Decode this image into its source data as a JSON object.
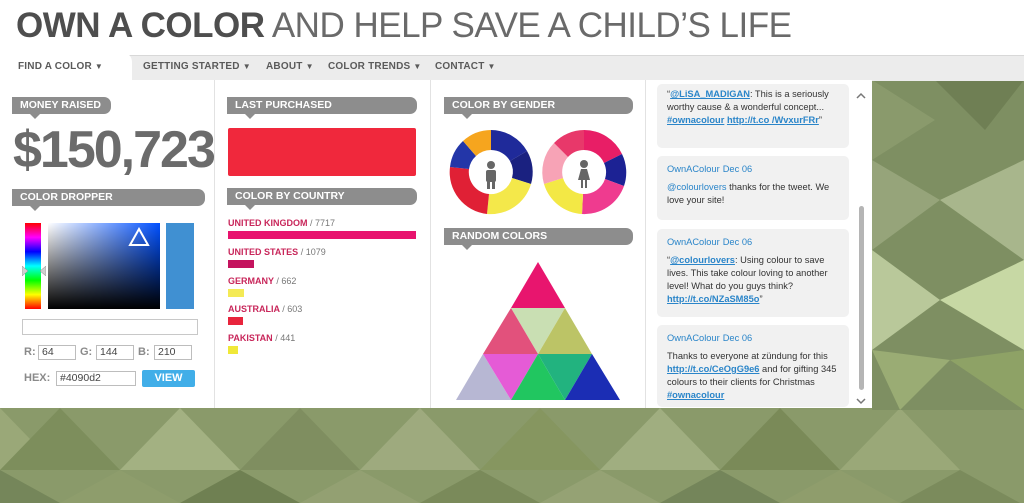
{
  "headline": {
    "bold": "OWN A COLOR",
    "rest": " AND HELP SAVE A CHILD’S LIFE"
  },
  "nav": [
    {
      "label": "FIND A COLOR"
    },
    {
      "label": "GETTING STARTED"
    },
    {
      "label": "ABOUT"
    },
    {
      "label": "COLOR TRENDS"
    },
    {
      "label": "CONTACT"
    }
  ],
  "money": {
    "label": "MONEY RAISED",
    "value": "$150,723"
  },
  "dropper": {
    "label": "COLOR DROPPER",
    "r_label": "R:",
    "r": "64",
    "g_label": "G:",
    "g": "144",
    "b_label": "B:",
    "b": "210",
    "hex_label": "HEX:",
    "hex": "#4090d2",
    "view": "VIEW"
  },
  "last_purchased": {
    "label": "LAST PURCHASED",
    "color": "#f0283c"
  },
  "by_country": {
    "label": "COLOR BY COUNTRY",
    "rows": [
      {
        "name": "UNITED KINGDOM",
        "count": "/ 7717",
        "color": "#e8136e",
        "value": 7717
      },
      {
        "name": "UNITED STATES",
        "count": "/ 1079",
        "color": "#c4135e",
        "value": 1079
      },
      {
        "name": "GERMANY",
        "count": "/ 662",
        "color": "#f4ea55",
        "value": 662
      },
      {
        "name": "AUSTRALIA",
        "count": "/ 603",
        "color": "#e8243c",
        "value": 603
      },
      {
        "name": "PAKISTAN",
        "count": "/ 441",
        "color": "#f0e838",
        "value": 441
      }
    ]
  },
  "by_gender": {
    "label": "COLOR BY GENDER",
    "male_icon": "male-icon",
    "female_icon": "female-icon"
  },
  "random_colors": {
    "label": "RANDOM COLORS"
  },
  "tweets": [
    {
      "pre": "“",
      "handle": "@LiSA_MADIGAN",
      "text": ": This is a seriously worthy cause & a wonderful concept... ",
      "tag": "#ownacolour",
      "link": "http://t.co /WvxurFRr",
      "post": "”"
    },
    {
      "author": "OwnAColour",
      "date": "Dec 06",
      "handle": "@colourlovers",
      "text": " thanks for the tweet. We love your site!"
    },
    {
      "author": "OwnAColour",
      "date": "Dec 06",
      "pre": "“",
      "handle": "@colourlovers",
      "text": ": Using colour to save lives. This take colour loving to another level! What do you guys think? ",
      "link": "http://t.co/NZaSM85o",
      "post": "”"
    },
    {
      "author": "OwnAColour",
      "date": "Dec 06",
      "text": "Thanks to everyone at zündung for this ",
      "link": "http://t.co/CeOgG9e6",
      "text2": " and for gifting 345 colours to their clients for Christmas ",
      "tag": "#ownacolour"
    }
  ]
}
